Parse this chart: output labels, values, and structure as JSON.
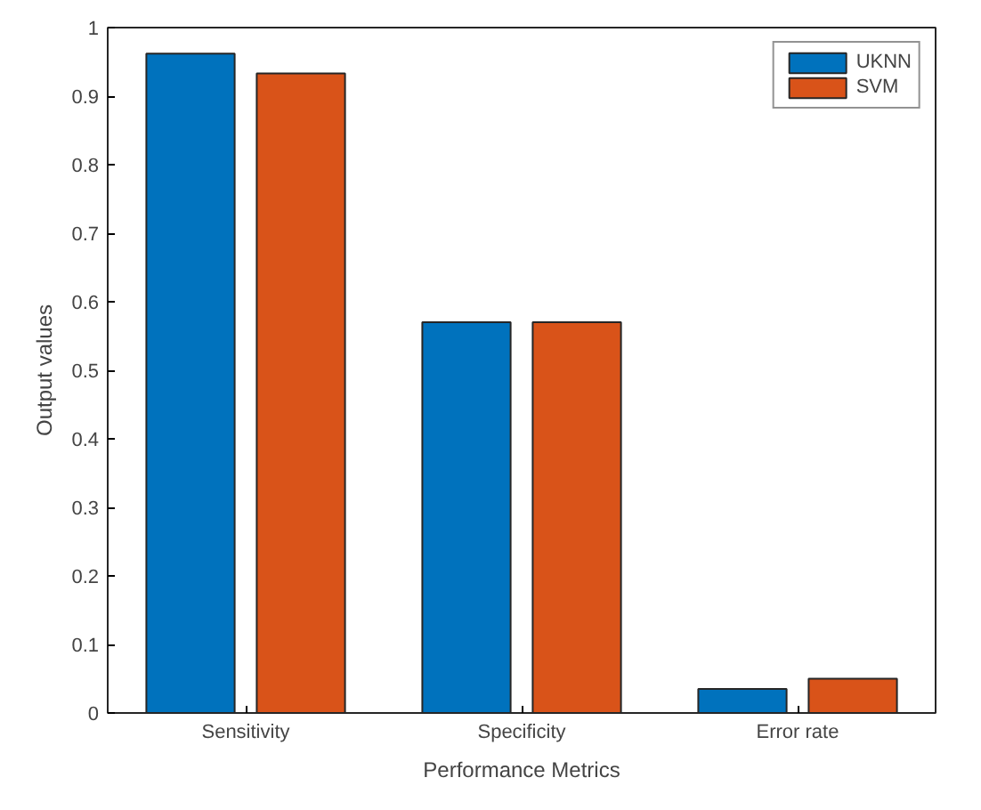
{
  "chart_data": {
    "type": "bar",
    "xlabel": "Performance Metrics",
    "ylabel": "Output values",
    "categories": [
      "Sensitivity",
      "Specificity",
      "Error rate"
    ],
    "series": [
      {
        "name": "UKNN",
        "color": "#0072bd",
        "values": [
          0.962,
          0.57,
          0.035
        ]
      },
      {
        "name": "SVM",
        "color": "#d95319",
        "values": [
          0.933,
          0.57,
          0.05
        ]
      }
    ],
    "ylim": [
      0,
      1
    ],
    "yticks": [
      0,
      0.1,
      0.2,
      0.3,
      0.4,
      0.5,
      0.6,
      0.7,
      0.8,
      0.9,
      1
    ],
    "grid": false,
    "legend": "top right"
  }
}
